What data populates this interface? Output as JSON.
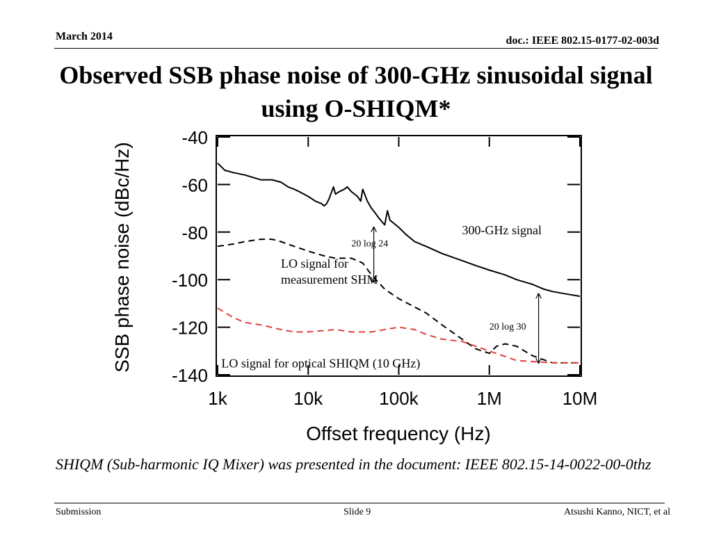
{
  "header": {
    "date": "March 2014",
    "doc": "doc.: IEEE 802.15-0177-02-003d"
  },
  "slide_title": "Observed SSB phase noise of 300-GHz sinusoidal signal using O-SHIQM*",
  "chart_data": {
    "type": "line",
    "xscale": "log",
    "xlabel": "Offset frequency (Hz)",
    "ylabel": "SSB phase noise (dBc/Hz)",
    "xlim": [
      1000,
      10000000
    ],
    "ylim": [
      -140,
      -40
    ],
    "x_ticks": [
      {
        "value": 1000,
        "label": "1k"
      },
      {
        "value": 10000,
        "label": "10k"
      },
      {
        "value": 100000,
        "label": "100k"
      },
      {
        "value": 1000000,
        "label": "1M"
      },
      {
        "value": 10000000,
        "label": "10M"
      }
    ],
    "y_ticks": [
      {
        "value": -40,
        "label": "-40"
      },
      {
        "value": -60,
        "label": "-60"
      },
      {
        "value": -80,
        "label": "-80"
      },
      {
        "value": -100,
        "label": "-100"
      },
      {
        "value": -120,
        "label": "-120"
      },
      {
        "value": -140,
        "label": "-140"
      }
    ],
    "series": [
      {
        "name": "300-GHz signal",
        "style": "solid",
        "color": "#000000",
        "x": [
          1000,
          1200,
          1500,
          2000,
          3000,
          4000,
          5000,
          6000,
          7000,
          8000,
          10000,
          12000,
          14000,
          15000,
          16000,
          17000,
          19000,
          20000,
          22000,
          25000,
          27000,
          30000,
          35000,
          38000,
          40000,
          42000,
          45000,
          50000,
          55000,
          60000,
          70000,
          75000,
          80000,
          100000,
          120000,
          150000,
          200000,
          300000,
          500000,
          700000,
          1000000,
          1500000,
          2000000,
          3000000,
          4000000,
          5000000,
          7000000,
          10000000
        ],
        "y": [
          -51,
          -54,
          -55,
          -56,
          -58,
          -58,
          -59,
          -61,
          -62,
          -63,
          -65,
          -67,
          -68,
          -69,
          -68,
          -66,
          -61,
          -64,
          -63,
          -62,
          -61,
          -63,
          -65,
          -67,
          -62,
          -64,
          -67,
          -70,
          -72,
          -74,
          -77,
          -71,
          -75,
          -78,
          -81,
          -84,
          -86,
          -89,
          -92,
          -94,
          -96,
          -98,
          -100,
          -102,
          -104,
          -105,
          -106,
          -107
        ]
      },
      {
        "name": "LO signal for measurement SHM",
        "style": "dashed",
        "color": "#000000",
        "x": [
          1000,
          1500,
          2000,
          3000,
          4000,
          5000,
          7000,
          10000,
          15000,
          20000,
          25000,
          30000,
          40000,
          50000,
          70000,
          100000,
          200000,
          300000,
          500000,
          700000,
          1000000,
          1200000,
          1500000,
          2000000,
          3000000,
          5000000,
          7000000,
          10000000
        ],
        "y": [
          -86,
          -85,
          -84,
          -83,
          -83,
          -84,
          -86,
          -88,
          -90,
          -91,
          -91,
          -91,
          -93,
          -98,
          -104,
          -108,
          -114,
          -119,
          -125,
          -129,
          -131,
          -128,
          -127,
          -128,
          -132,
          -135,
          -135,
          -135
        ]
      },
      {
        "name": "LO signal for optical SHIQM (10 GHz)",
        "style": "dashed",
        "color": "#e0403c",
        "x": [
          1000,
          1500,
          2000,
          3000,
          5000,
          7000,
          10000,
          20000,
          30000,
          50000,
          70000,
          100000,
          150000,
          200000,
          300000,
          500000,
          1000000,
          2000000,
          5000000,
          10000000
        ],
        "y": [
          -112,
          -116,
          -118,
          -119,
          -121,
          -122,
          -122,
          -121,
          -122,
          -122,
          -121,
          -120,
          -121,
          -123,
          -125,
          -126,
          -130,
          -134,
          -135,
          -135
        ]
      }
    ],
    "annotations": [
      {
        "text": "300-GHz signal",
        "anchor_x": 500000,
        "anchor_y": -81
      },
      {
        "text": "20 log 24",
        "anchor_x": 30000,
        "anchor_y": -86,
        "arrow_from": -78,
        "arrow_to": -101,
        "arrow_x": 53000
      },
      {
        "text": "LO signal for",
        "text2": "measurement SHM",
        "anchor_x": 5000,
        "anchor_y": -95
      },
      {
        "text": "20 log 30",
        "anchor_x": 1000000,
        "anchor_y": -121,
        "arrow_from": -106,
        "arrow_to": -135,
        "arrow_x": 3500000
      },
      {
        "text": "LO signal for optical SHIQM (10 GHz)",
        "anchor_x": 1100,
        "anchor_y": -137
      }
    ]
  },
  "footnote": "SHIQM (Sub-harmonic IQ Mixer) was presented in the document: IEEE 802.15-14-0022-00-0thz",
  "footer": {
    "left": "Submission",
    "center": "Slide 9",
    "right": "Atsushi Kanno, NICT, et al"
  }
}
